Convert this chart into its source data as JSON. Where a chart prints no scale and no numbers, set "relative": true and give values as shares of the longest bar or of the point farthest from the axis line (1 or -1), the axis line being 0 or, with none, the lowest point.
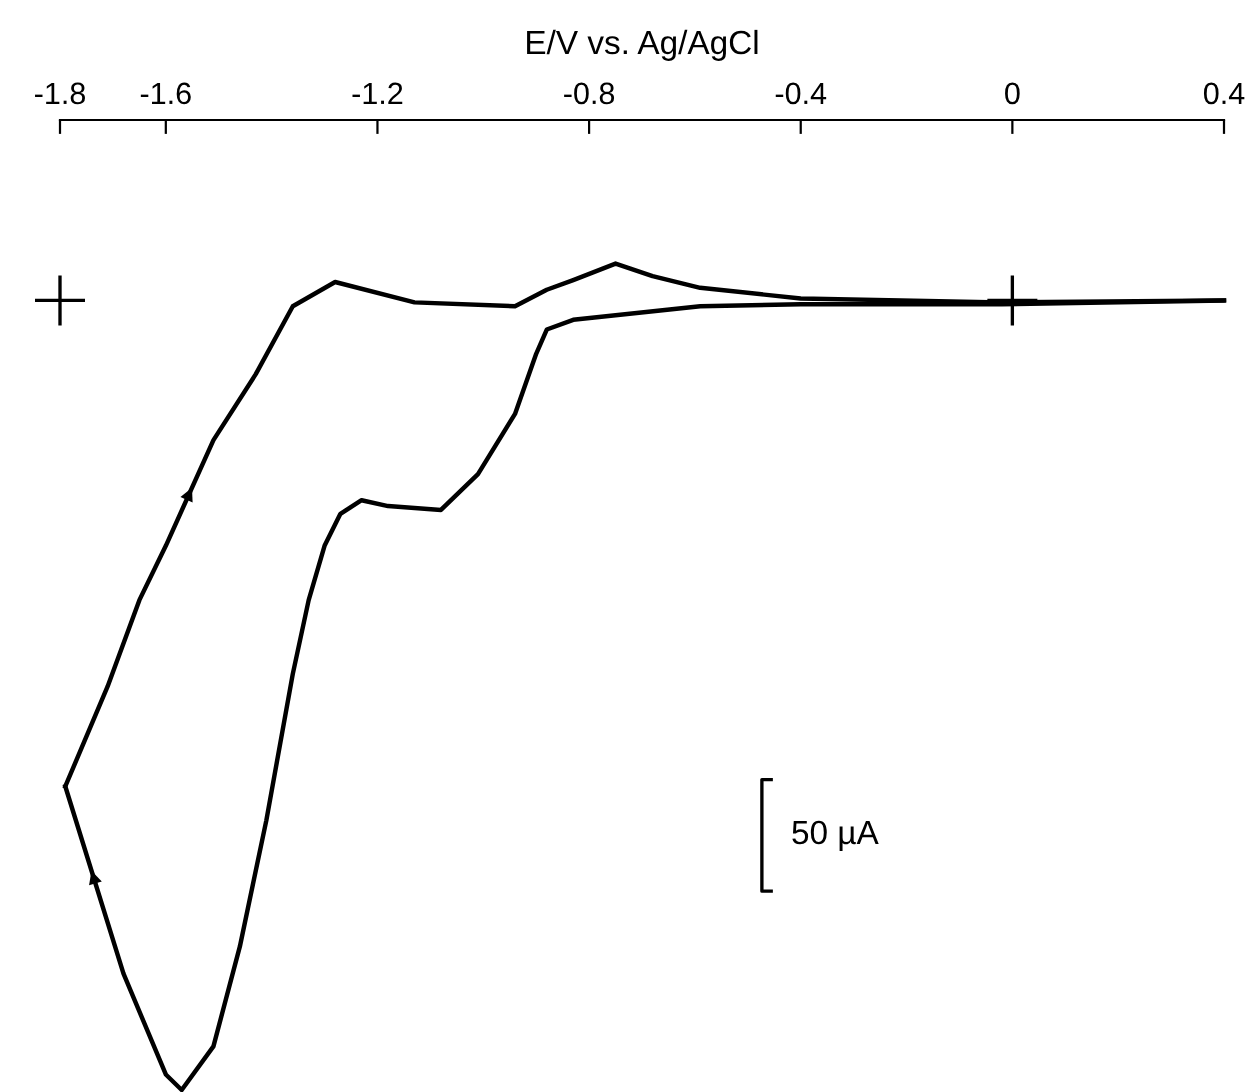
{
  "chart_data": {
    "type": "line",
    "xlabel": "E/V vs. Ag/AgCl",
    "relative": true,
    "xlim": [
      -1.8,
      0.4
    ],
    "xticks": [
      -1.8,
      -1.6,
      -1.2,
      -0.8,
      -0.4,
      0,
      0.4
    ],
    "tick_labels": "x",
    "grid": false,
    "legend": false,
    "marker": "none",
    "line_style": "solid",
    "annotations": [
      "50 µA"
    ],
    "series": [
      {
        "color": "#000000",
        "x": [
          0.4,
          -0.02,
          -0.4,
          -0.59,
          -0.83,
          -0.88,
          -0.9,
          -0.94,
          -1.01,
          -1.08,
          -1.18,
          -1.23,
          -1.27,
          -1.3,
          -1.33,
          -1.36,
          -1.41,
          -1.46,
          -1.51,
          -1.57,
          -1.6,
          -1.68,
          -1.79
        ],
        "values": [
          -0.186,
          -0.19,
          -0.19,
          -0.192,
          -0.206,
          -0.216,
          -0.241,
          -0.303,
          -0.365,
          -0.402,
          -0.398,
          -0.392,
          -0.406,
          -0.439,
          -0.495,
          -0.571,
          -0.722,
          -0.852,
          -0.955,
          -1.0,
          -0.984,
          -0.88,
          -0.687
        ]
      },
      {
        "color": "#000000",
        "x": [
          -1.79,
          -1.71,
          -1.65,
          -1.6,
          -1.51,
          -1.43,
          -1.36,
          -1.28,
          -1.13,
          -0.94,
          -0.88,
          -0.83,
          -0.75,
          -0.68,
          -0.59,
          -0.4,
          -0.02,
          0.4
        ],
        "values": [
          -0.687,
          -0.584,
          -0.495,
          -0.439,
          -0.33,
          -0.262,
          -0.192,
          -0.167,
          -0.188,
          -0.192,
          -0.175,
          -0.165,
          -0.148,
          -0.161,
          -0.173,
          -0.184,
          -0.188,
          -0.186
        ]
      }
    ]
  }
}
